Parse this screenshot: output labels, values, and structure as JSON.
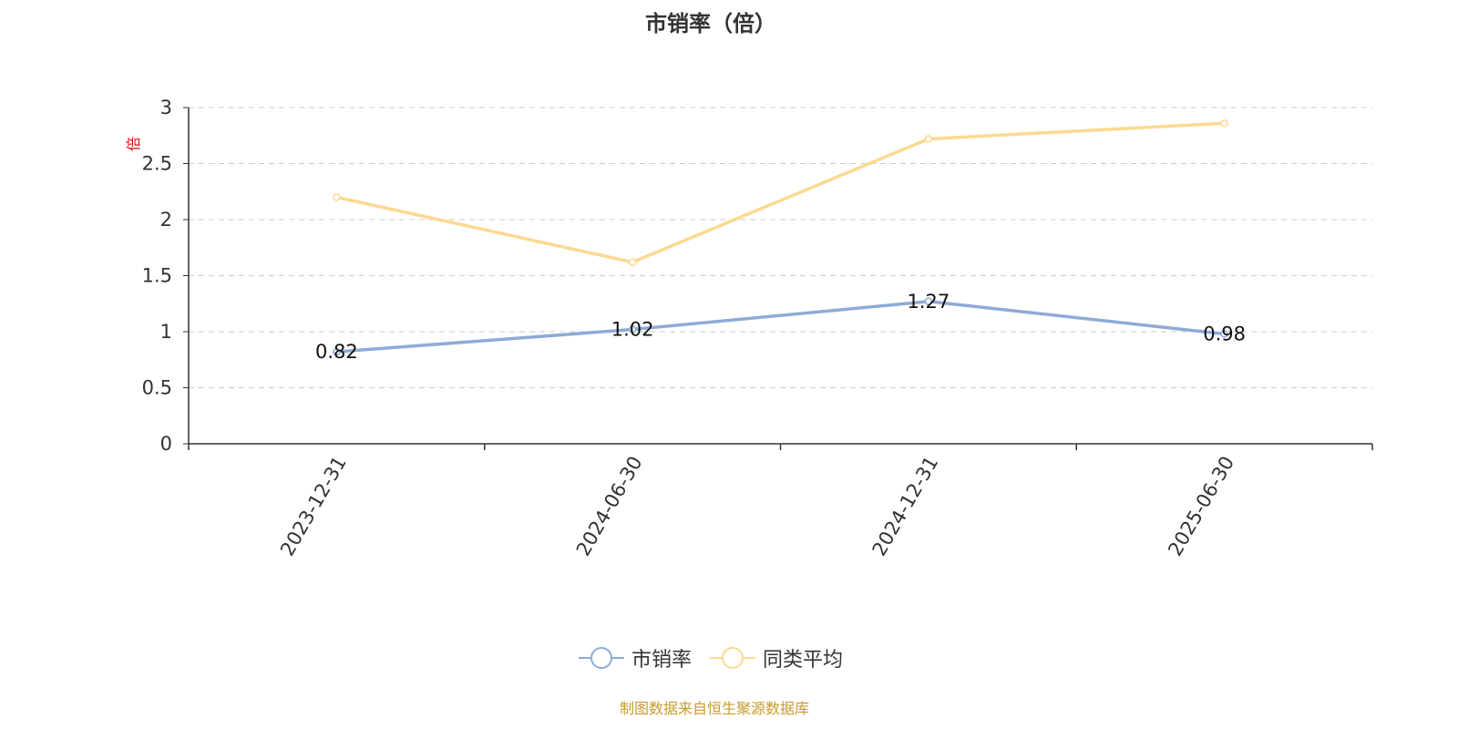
{
  "chart_data": {
    "type": "line",
    "title": "市销率（倍）",
    "ylabel": "倍",
    "xlabel": "",
    "categories": [
      "2023-12-31",
      "2024-06-30",
      "2024-12-31",
      "2025-06-30"
    ],
    "ylim": [
      0,
      3
    ],
    "yticks": [
      "0",
      "0.5",
      "1",
      "1.5",
      "2",
      "2.5",
      "3"
    ],
    "grid": true,
    "legend_position": "bottom",
    "series": [
      {
        "name": "市销率",
        "values": [
          0.82,
          1.02,
          1.27,
          0.98
        ],
        "labels": [
          "0.82",
          "1.02",
          "1.27",
          "0.98"
        ],
        "color": "#8eaad6",
        "show_labels": true
      },
      {
        "name": "同类平均",
        "values": [
          2.2,
          1.62,
          2.72,
          2.86
        ],
        "color": "#fcd992",
        "show_labels": false
      }
    ]
  },
  "footer": {
    "note": "制图数据来自恒生聚源数据库"
  },
  "colors": {
    "axis": "#333333",
    "grid": "#cccccc",
    "ylabel": "#e01010",
    "footer": "#c89a2e"
  }
}
